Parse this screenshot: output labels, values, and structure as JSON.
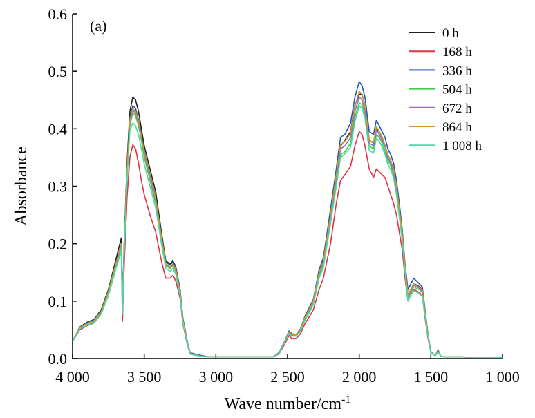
{
  "chart_data": {
    "type": "line",
    "panel_label": "(a)",
    "xlabel": "Wave number/cm",
    "xlabel_sup": "-1",
    "ylabel": "Absorbance",
    "xlim": [
      4000,
      1000
    ],
    "ylim": [
      0.0,
      0.6
    ],
    "x_reversed": true,
    "grid": false,
    "legend_position": "top-right",
    "x_ticks": [
      4000,
      3500,
      3000,
      2500,
      2000,
      1500,
      1000
    ],
    "x_tick_labels": [
      "4 000",
      "3 500",
      "3 000",
      "2 500",
      "2 000",
      "1 500",
      "1 000"
    ],
    "y_ticks": [
      0.0,
      0.1,
      0.2,
      0.3,
      0.4,
      0.5,
      0.6
    ],
    "y_tick_labels": [
      "0.0",
      "0.1",
      "0.2",
      "0.3",
      "0.4",
      "0.5",
      "0.6"
    ],
    "x": [
      4000,
      3950,
      3900,
      3850,
      3800,
      3750,
      3700,
      3670,
      3660,
      3652,
      3640,
      3620,
      3600,
      3580,
      3560,
      3540,
      3520,
      3500,
      3460,
      3420,
      3380,
      3350,
      3320,
      3300,
      3280,
      3250,
      3230,
      3200,
      3180,
      3150,
      3100,
      3050,
      3000,
      2900,
      2800,
      2700,
      2600,
      2560,
      2520,
      2490,
      2470,
      2440,
      2410,
      2380,
      2350,
      2320,
      2280,
      2250,
      2200,
      2160,
      2130,
      2100,
      2060,
      2030,
      2000,
      1980,
      1960,
      1930,
      1900,
      1880,
      1860,
      1840,
      1820,
      1800,
      1780,
      1760,
      1740,
      1720,
      1700,
      1680,
      1660,
      1640,
      1620,
      1600,
      1580,
      1560,
      1540,
      1520,
      1500,
      1470,
      1450,
      1430,
      1400,
      1300,
      1200,
      1100,
      1000
    ],
    "series": [
      {
        "name": "0 h",
        "color": "#222222",
        "values": [
          0.03,
          0.055,
          0.063,
          0.068,
          0.085,
          0.12,
          0.17,
          0.2,
          0.21,
          0.09,
          0.2,
          0.34,
          0.43,
          0.455,
          0.45,
          0.43,
          0.4,
          0.37,
          0.33,
          0.29,
          0.22,
          0.17,
          0.165,
          0.17,
          0.16,
          0.12,
          0.07,
          0.03,
          0.01,
          0.008,
          0.005,
          0.003,
          0.003,
          0.003,
          0.003,
          0.003,
          0.003,
          0.01,
          0.03,
          0.045,
          0.04,
          0.04,
          0.05,
          0.07,
          0.085,
          0.1,
          0.15,
          0.17,
          0.25,
          0.32,
          0.37,
          0.38,
          0.395,
          0.44,
          0.46,
          0.46,
          0.44,
          0.38,
          0.375,
          0.4,
          0.395,
          0.385,
          0.37,
          0.35,
          0.34,
          0.33,
          0.3,
          0.26,
          0.22,
          0.16,
          0.11,
          0.12,
          0.13,
          0.128,
          0.125,
          0.12,
          0.08,
          0.04,
          0.01,
          0.005,
          0.012,
          0.004,
          0.003,
          0.003,
          0.002,
          0.002,
          0.002
        ]
      },
      {
        "name": "168 h",
        "color": "#dd3344",
        "values": [
          0.03,
          0.05,
          0.057,
          0.062,
          0.078,
          0.11,
          0.155,
          0.18,
          0.19,
          0.065,
          0.16,
          0.28,
          0.35,
          0.372,
          0.365,
          0.34,
          0.31,
          0.285,
          0.25,
          0.22,
          0.17,
          0.14,
          0.14,
          0.145,
          0.135,
          0.105,
          0.06,
          0.025,
          0.008,
          0.006,
          0.004,
          0.003,
          0.003,
          0.003,
          0.003,
          0.003,
          0.003,
          0.008,
          0.025,
          0.04,
          0.035,
          0.035,
          0.043,
          0.06,
          0.072,
          0.085,
          0.12,
          0.14,
          0.2,
          0.27,
          0.31,
          0.32,
          0.335,
          0.37,
          0.395,
          0.39,
          0.37,
          0.33,
          0.315,
          0.33,
          0.325,
          0.32,
          0.315,
          0.3,
          0.285,
          0.27,
          0.25,
          0.22,
          0.19,
          0.14,
          0.1,
          0.11,
          0.12,
          0.118,
          0.115,
          0.11,
          0.07,
          0.035,
          0.01,
          0.005,
          0.012,
          0.004,
          0.003,
          0.003,
          0.002,
          0.002,
          0.002
        ]
      },
      {
        "name": "336 h",
        "color": "#2255bb",
        "values": [
          0.03,
          0.055,
          0.062,
          0.067,
          0.083,
          0.118,
          0.165,
          0.19,
          0.2,
          0.085,
          0.19,
          0.33,
          0.42,
          0.44,
          0.435,
          0.415,
          0.39,
          0.36,
          0.32,
          0.28,
          0.215,
          0.168,
          0.163,
          0.168,
          0.158,
          0.118,
          0.068,
          0.03,
          0.01,
          0.008,
          0.005,
          0.003,
          0.003,
          0.003,
          0.003,
          0.003,
          0.003,
          0.01,
          0.03,
          0.048,
          0.043,
          0.042,
          0.052,
          0.073,
          0.088,
          0.103,
          0.155,
          0.175,
          0.26,
          0.33,
          0.385,
          0.39,
          0.41,
          0.455,
          0.482,
          0.475,
          0.455,
          0.395,
          0.39,
          0.415,
          0.405,
          0.395,
          0.385,
          0.365,
          0.355,
          0.34,
          0.31,
          0.27,
          0.225,
          0.165,
          0.12,
          0.13,
          0.14,
          0.135,
          0.13,
          0.125,
          0.085,
          0.042,
          0.012,
          0.005,
          0.015,
          0.004,
          0.003,
          0.003,
          0.002,
          0.002,
          0.002
        ]
      },
      {
        "name": "504 h",
        "color": "#44cc44",
        "values": [
          0.03,
          0.053,
          0.06,
          0.065,
          0.08,
          0.114,
          0.16,
          0.185,
          0.195,
          0.08,
          0.185,
          0.32,
          0.405,
          0.428,
          0.422,
          0.405,
          0.38,
          0.35,
          0.31,
          0.27,
          0.208,
          0.162,
          0.157,
          0.162,
          0.152,
          0.113,
          0.065,
          0.028,
          0.009,
          0.007,
          0.004,
          0.003,
          0.003,
          0.003,
          0.003,
          0.003,
          0.003,
          0.009,
          0.028,
          0.044,
          0.04,
          0.04,
          0.049,
          0.068,
          0.082,
          0.097,
          0.145,
          0.163,
          0.24,
          0.305,
          0.355,
          0.36,
          0.375,
          0.42,
          0.445,
          0.442,
          0.425,
          0.37,
          0.365,
          0.39,
          0.385,
          0.375,
          0.36,
          0.345,
          0.335,
          0.32,
          0.29,
          0.25,
          0.21,
          0.155,
          0.105,
          0.115,
          0.125,
          0.122,
          0.12,
          0.115,
          0.078,
          0.04,
          0.01,
          0.005,
          0.012,
          0.004,
          0.003,
          0.003,
          0.002,
          0.002,
          0.002
        ]
      },
      {
        "name": "672 h",
        "color": "#9966dd",
        "values": [
          0.03,
          0.054,
          0.061,
          0.066,
          0.082,
          0.116,
          0.162,
          0.188,
          0.198,
          0.082,
          0.188,
          0.325,
          0.41,
          0.432,
          0.427,
          0.41,
          0.385,
          0.355,
          0.315,
          0.275,
          0.21,
          0.164,
          0.159,
          0.164,
          0.154,
          0.115,
          0.066,
          0.029,
          0.009,
          0.007,
          0.004,
          0.003,
          0.003,
          0.003,
          0.003,
          0.003,
          0.003,
          0.009,
          0.029,
          0.046,
          0.041,
          0.041,
          0.05,
          0.07,
          0.084,
          0.099,
          0.148,
          0.167,
          0.245,
          0.315,
          0.365,
          0.37,
          0.385,
          0.43,
          0.455,
          0.45,
          0.432,
          0.375,
          0.37,
          0.398,
          0.39,
          0.38,
          0.368,
          0.35,
          0.34,
          0.325,
          0.295,
          0.255,
          0.215,
          0.158,
          0.108,
          0.118,
          0.128,
          0.125,
          0.122,
          0.117,
          0.08,
          0.04,
          0.011,
          0.005,
          0.013,
          0.004,
          0.003,
          0.003,
          0.002,
          0.002,
          0.002
        ]
      },
      {
        "name": "864 h",
        "color": "#cc9922",
        "values": [
          0.03,
          0.054,
          0.061,
          0.066,
          0.082,
          0.117,
          0.163,
          0.189,
          0.199,
          0.083,
          0.19,
          0.328,
          0.415,
          0.435,
          0.43,
          0.412,
          0.387,
          0.357,
          0.317,
          0.277,
          0.212,
          0.165,
          0.16,
          0.165,
          0.155,
          0.116,
          0.067,
          0.029,
          0.009,
          0.007,
          0.004,
          0.003,
          0.003,
          0.003,
          0.003,
          0.003,
          0.003,
          0.009,
          0.029,
          0.046,
          0.042,
          0.041,
          0.051,
          0.071,
          0.085,
          0.1,
          0.15,
          0.169,
          0.25,
          0.32,
          0.372,
          0.378,
          0.392,
          0.438,
          0.465,
          0.46,
          0.44,
          0.38,
          0.376,
          0.404,
          0.395,
          0.386,
          0.372,
          0.355,
          0.345,
          0.33,
          0.3,
          0.26,
          0.218,
          0.16,
          0.11,
          0.12,
          0.13,
          0.127,
          0.124,
          0.119,
          0.081,
          0.041,
          0.011,
          0.005,
          0.013,
          0.004,
          0.003,
          0.003,
          0.002,
          0.002,
          0.002
        ]
      },
      {
        "name": "1 008 h",
        "color": "#44ddaa",
        "values": [
          0.03,
          0.052,
          0.058,
          0.063,
          0.078,
          0.11,
          0.155,
          0.18,
          0.19,
          0.078,
          0.18,
          0.31,
          0.395,
          0.41,
          0.405,
          0.39,
          0.365,
          0.338,
          0.3,
          0.262,
          0.2,
          0.157,
          0.152,
          0.157,
          0.147,
          0.109,
          0.062,
          0.027,
          0.008,
          0.006,
          0.004,
          0.003,
          0.003,
          0.003,
          0.003,
          0.003,
          0.003,
          0.009,
          0.028,
          0.043,
          0.039,
          0.039,
          0.047,
          0.066,
          0.079,
          0.094,
          0.14,
          0.158,
          0.235,
          0.3,
          0.35,
          0.356,
          0.368,
          0.412,
          0.44,
          0.435,
          0.418,
          0.362,
          0.358,
          0.383,
          0.378,
          0.368,
          0.355,
          0.338,
          0.328,
          0.314,
          0.285,
          0.245,
          0.205,
          0.15,
          0.1,
          0.11,
          0.118,
          0.116,
          0.113,
          0.108,
          0.074,
          0.038,
          0.01,
          0.005,
          0.011,
          0.004,
          0.003,
          0.003,
          0.002,
          0.002,
          0.002
        ]
      }
    ]
  }
}
